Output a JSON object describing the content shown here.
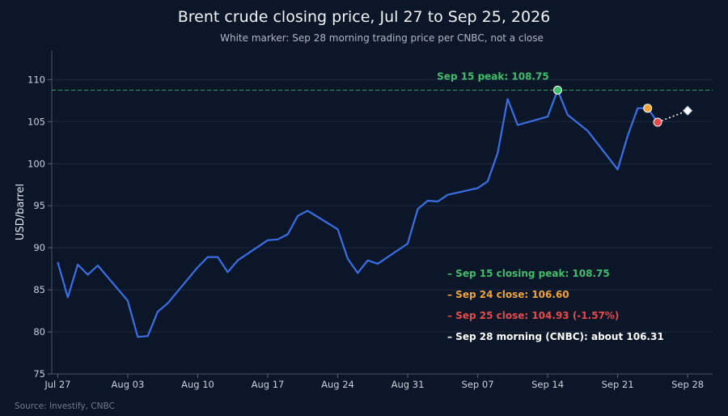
{
  "chart_data": {
    "type": "line",
    "title": "Brent crude closing price, Jul 27 to Sep 25, 2026",
    "subtitle": "White marker: Sep 28 morning trading price per CNBC, not a close",
    "ylabel": "USD/barrel",
    "ylim": [
      75,
      113.5
    ],
    "yticks": [
      75,
      80,
      85,
      90,
      95,
      100,
      105,
      110
    ],
    "grid": "horizontal",
    "x_tick_labels": [
      "Jul 27",
      "Aug 03",
      "Aug 10",
      "Aug 17",
      "Aug 24",
      "Aug 31",
      "Sep 07",
      "Sep 14",
      "Sep 21",
      "Sep 28"
    ],
    "x_range_days": [
      -0.6,
      65.5
    ],
    "series": [
      {
        "color": "#3b6fe6",
        "points": [
          {
            "day": 0,
            "date": "Jul 27",
            "value": 88.3
          },
          {
            "day": 1,
            "date": "Jul 28",
            "value": 84.1
          },
          {
            "day": 2,
            "date": "Jul 29",
            "value": 88.0
          },
          {
            "day": 3,
            "date": "Jul 30",
            "value": 86.8
          },
          {
            "day": 4,
            "date": "Jul 31",
            "value": 87.9
          },
          {
            "day": 7,
            "date": "Aug 03",
            "value": 83.7
          },
          {
            "day": 8,
            "date": "Aug 04",
            "value": 79.4
          },
          {
            "day": 9,
            "date": "Aug 05",
            "value": 79.5
          },
          {
            "day": 10,
            "date": "Aug 06",
            "value": 82.4
          },
          {
            "day": 11,
            "date": "Aug 07",
            "value": 83.4
          },
          {
            "day": 14,
            "date": "Aug 10",
            "value": 87.7
          },
          {
            "day": 15,
            "date": "Aug 11",
            "value": 88.9
          },
          {
            "day": 16,
            "date": "Aug 12",
            "value": 88.9
          },
          {
            "day": 17,
            "date": "Aug 13",
            "value": 87.1
          },
          {
            "day": 18,
            "date": "Aug 14",
            "value": 88.5
          },
          {
            "day": 21,
            "date": "Aug 17",
            "value": 90.9
          },
          {
            "day": 22,
            "date": "Aug 18",
            "value": 91.0
          },
          {
            "day": 23,
            "date": "Aug 19",
            "value": 91.6
          },
          {
            "day": 24,
            "date": "Aug 20",
            "value": 93.8
          },
          {
            "day": 25,
            "date": "Aug 21",
            "value": 94.4
          },
          {
            "day": 28,
            "date": "Aug 24",
            "value": 92.2
          },
          {
            "day": 29,
            "date": "Aug 25",
            "value": 88.7
          },
          {
            "day": 30,
            "date": "Aug 26",
            "value": 87.0
          },
          {
            "day": 31,
            "date": "Aug 27",
            "value": 88.5
          },
          {
            "day": 32,
            "date": "Aug 28",
            "value": 88.1
          },
          {
            "day": 35,
            "date": "Aug 31",
            "value": 90.5
          },
          {
            "day": 36,
            "date": "Sep 01",
            "value": 94.6
          },
          {
            "day": 37,
            "date": "Sep 02",
            "value": 95.6
          },
          {
            "day": 38,
            "date": "Sep 03",
            "value": 95.5
          },
          {
            "day": 39,
            "date": "Sep 04",
            "value": 96.3
          },
          {
            "day": 42,
            "date": "Sep 07",
            "value": 97.1
          },
          {
            "day": 43,
            "date": "Sep 08",
            "value": 97.9
          },
          {
            "day": 44,
            "date": "Sep 09",
            "value": 101.3
          },
          {
            "day": 45,
            "date": "Sep 10",
            "value": 107.7
          },
          {
            "day": 46,
            "date": "Sep 11",
            "value": 104.6
          },
          {
            "day": 49,
            "date": "Sep 14",
            "value": 105.6
          },
          {
            "day": 50,
            "date": "Sep 15",
            "value": 108.75
          },
          {
            "day": 51,
            "date": "Sep 16",
            "value": 105.8
          },
          {
            "day": 53,
            "date": "Sep 18",
            "value": 103.9
          },
          {
            "day": 56,
            "date": "Sep 21",
            "value": 99.3
          },
          {
            "day": 57,
            "date": "Sep 22",
            "value": 103.3
          },
          {
            "day": 58,
            "date": "Sep 23",
            "value": 106.6
          },
          {
            "day": 59,
            "date": "Sep 24",
            "value": 106.6
          },
          {
            "day": 60,
            "date": "Sep 25",
            "value": 104.93
          }
        ]
      }
    ],
    "reference_line": {
      "value": 108.75,
      "label": "Sep 15 peak: 108.75",
      "color": "#3fbf6a"
    },
    "highlighted_points": [
      {
        "day": 50,
        "value": 108.75,
        "color": "#3fbf6a",
        "name": "sep-15-peak-marker"
      },
      {
        "day": 59,
        "value": 106.6,
        "color": "#f2a33a",
        "name": "sep-24-close-marker"
      },
      {
        "day": 60,
        "value": 104.93,
        "color": "#e84a4a",
        "name": "sep-25-close-marker"
      }
    ],
    "morning_point": {
      "day": 63,
      "value": 106.31,
      "color": "#ffffff"
    },
    "annotations": [
      {
        "text": "– Sep 15 closing peak: 108.75",
        "color": "#3fbf6a"
      },
      {
        "text": "– Sep 24 close: 106.60",
        "color": "#f2a33a"
      },
      {
        "text": "– Sep 25 close: 104.93 (-1.57%)",
        "color": "#e84a4a"
      },
      {
        "text": "– Sep 28 morning (CNBC): about 106.31",
        "color": "#ffffff"
      }
    ],
    "source": "Source: Investify, CNBC"
  }
}
